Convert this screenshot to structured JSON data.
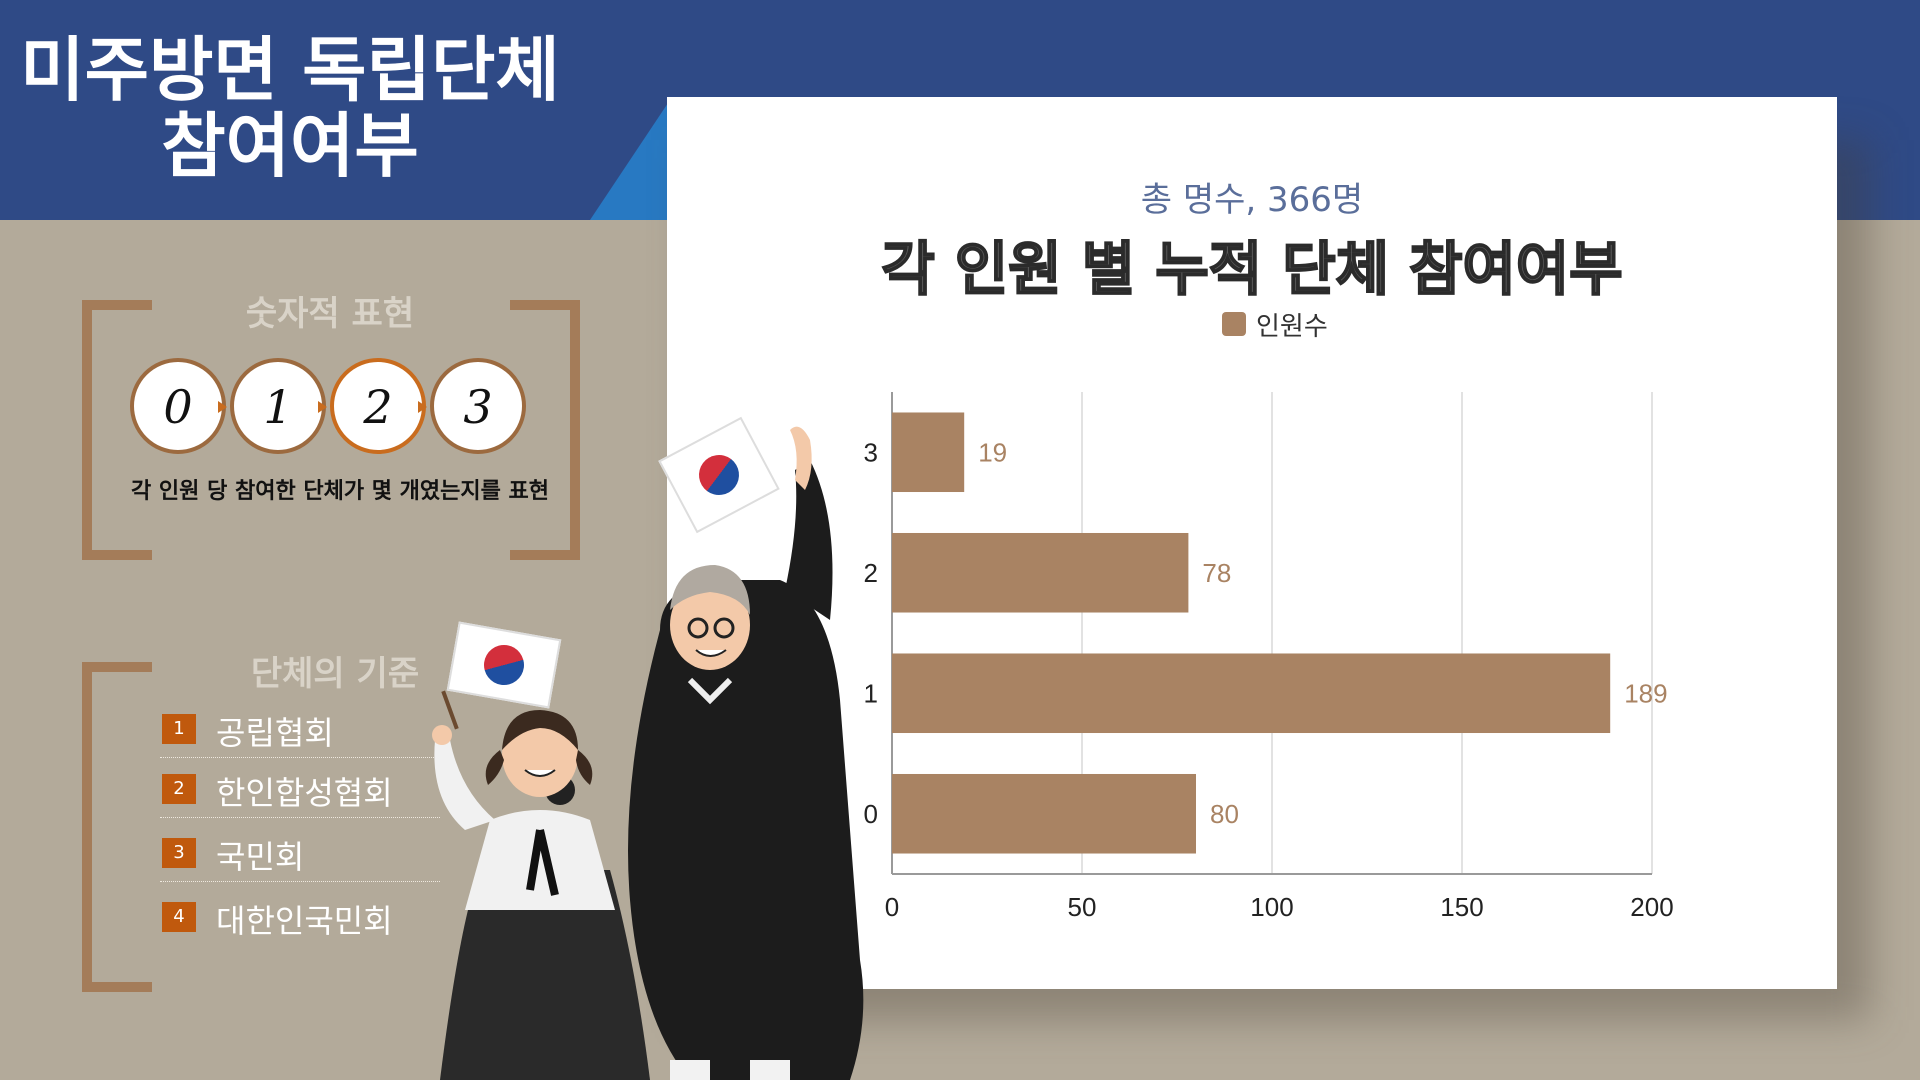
{
  "title": {
    "line1": "미주방면 독립단체",
    "line2": "참여여부"
  },
  "numeric_section": {
    "title": "숫자적 표현",
    "circles": [
      "0",
      "1",
      "2",
      "3"
    ],
    "description": "각 인원 당 참여한 단체가 몇 개였는지를 표현"
  },
  "criteria_section": {
    "title": "단체의 기준",
    "items": [
      {
        "num": "1",
        "label": "공립협회"
      },
      {
        "num": "2",
        "label": "한인합성협회"
      },
      {
        "num": "3",
        "label": "국민회"
      },
      {
        "num": "4",
        "label": "대한인국민회"
      }
    ]
  },
  "colors": {
    "bar": "#a98363",
    "navy": "#2f4a86",
    "accent_orange": "#c0590d"
  },
  "chart_data": {
    "type": "bar",
    "orientation": "horizontal",
    "subtitle": "총 명수, 366명",
    "title": "각 인원 별 누적 단체 참여여부",
    "categories": [
      "3",
      "2",
      "1",
      "0"
    ],
    "series": [
      {
        "name": "인원수",
        "values": [
          19,
          78,
          189,
          80
        ]
      }
    ],
    "xlim": [
      0,
      200
    ],
    "xticks": [
      "0",
      "50",
      "100",
      "150",
      "200"
    ],
    "grid": true,
    "legend": "top"
  }
}
